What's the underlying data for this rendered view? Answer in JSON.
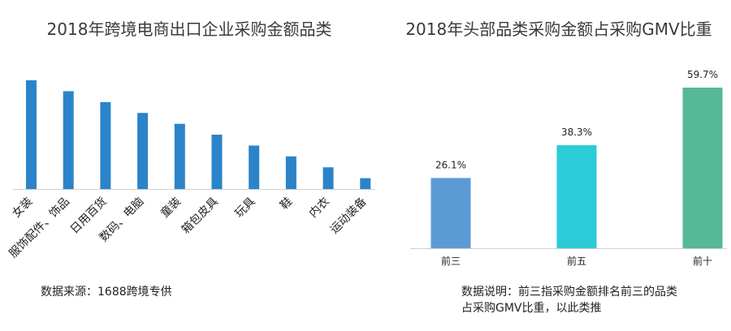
{
  "chart_data": [
    {
      "type": "bar",
      "title": "2018年跨境电商出口企业采购金额品类",
      "categories": [
        "女装",
        "服饰配件、饰品",
        "日用百货",
        "数码、电脑",
        "童装",
        "箱包皮具",
        "玩具",
        "鞋",
        "内衣",
        "运动装备"
      ],
      "values": [
        10,
        9,
        8,
        7,
        6,
        5,
        4,
        3,
        2,
        1
      ],
      "color": "#2b84c9",
      "ylim": [
        0,
        10.5
      ],
      "grid": false,
      "note": "数据来源：1688跨境专供"
    },
    {
      "type": "bar",
      "title": "2018年头部品类采购金额占采购GMV比重",
      "categories": [
        "前三",
        "前五",
        "前十"
      ],
      "values": [
        26.1,
        38.3,
        59.7
      ],
      "value_labels": [
        "26.1%",
        "38.3%",
        "59.7%"
      ],
      "colors": [
        "#5b9bd5",
        "#2bcbd8",
        "#56b896"
      ],
      "ylim": [
        0,
        62
      ],
      "grid": false,
      "note_lines": [
        "数据说明：前三指采购金额排名前三的品类",
        "占采购GMV比重，以此类推"
      ]
    }
  ]
}
